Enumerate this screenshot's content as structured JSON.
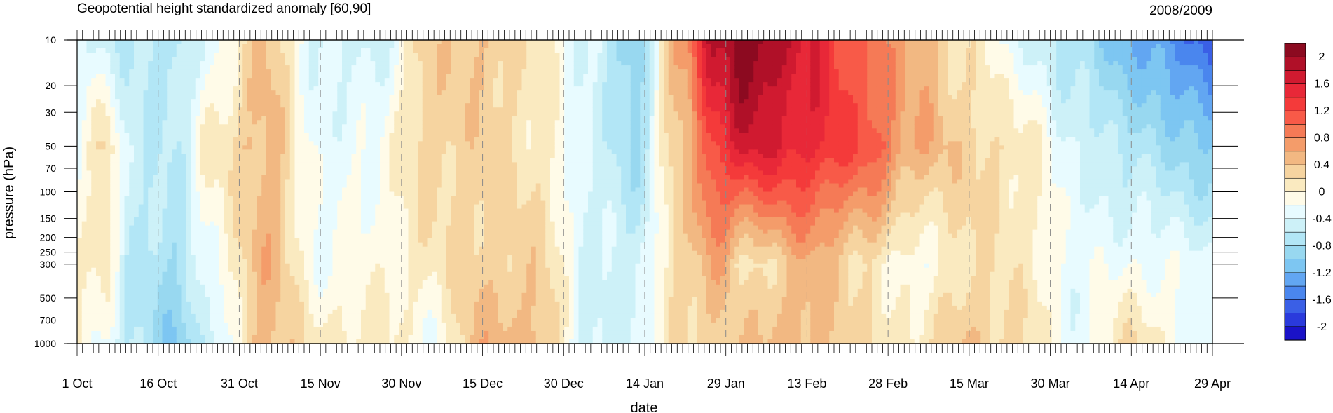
{
  "chart_data": {
    "type": "heatmap",
    "title": "Geopotential height standardized anomaly [60,90]",
    "title_right": "2008/2009",
    "xlabel": "date",
    "ylabel": "pressure (hPa)",
    "x_ticks": [
      {
        "day": 0,
        "label": "1 Oct"
      },
      {
        "day": 15,
        "label": "16 Oct"
      },
      {
        "day": 30,
        "label": "31 Oct"
      },
      {
        "day": 45,
        "label": "15 Nov"
      },
      {
        "day": 60,
        "label": "30 Nov"
      },
      {
        "day": 75,
        "label": "15 Dec"
      },
      {
        "day": 90,
        "label": "30 Dec"
      },
      {
        "day": 105,
        "label": "14 Jan"
      },
      {
        "day": 120,
        "label": "29 Jan"
      },
      {
        "day": 135,
        "label": "13 Feb"
      },
      {
        "day": 150,
        "label": "28 Feb"
      },
      {
        "day": 165,
        "label": "15 Mar"
      },
      {
        "day": 180,
        "label": "30 Mar"
      },
      {
        "day": 195,
        "label": "14 Apr"
      },
      {
        "day": 210,
        "label": "29 Apr"
      }
    ],
    "x_range_days": [
      0,
      210
    ],
    "y_ticks": [
      10,
      20,
      30,
      50,
      70,
      100,
      150,
      200,
      250,
      300,
      500,
      700,
      1000
    ],
    "y_range": [
      10,
      1000
    ],
    "y_scale": "log",
    "y_inverted": true,
    "colorbar_levels": [
      -2.2,
      -2.0,
      -1.8,
      -1.6,
      -1.4,
      -1.2,
      -1.0,
      -0.8,
      -0.6,
      -0.4,
      -0.2,
      0,
      0.2,
      0.4,
      0.6,
      0.8,
      1.0,
      1.2,
      1.4,
      1.6,
      1.8,
      2.0,
      2.2
    ],
    "colorbar_labels": [
      "2",
      "1.6",
      "1.2",
      "0.8",
      "0.4",
      "0",
      "-0.4",
      "-0.8",
      "-1.2",
      "-1.6",
      "-2"
    ],
    "colorbar_label_values": [
      2,
      1.6,
      1.2,
      0.8,
      0.4,
      0,
      -0.4,
      -0.8,
      -1.2,
      -1.6,
      -2
    ],
    "colors": [
      "#1a12c8",
      "#2a3adc",
      "#3a5fe6",
      "#4a86ee",
      "#62a6f2",
      "#7dc6f2",
      "#98d8f0",
      "#b2e6f6",
      "#cdf1f8",
      "#e8fbff",
      "#fffbe8",
      "#faeac0",
      "#f6d4a0",
      "#f2b882",
      "#f49c6a",
      "#f57a56",
      "#f85a48",
      "#f43a3a",
      "#e82838",
      "#d01a30",
      "#b01028",
      "#8c0a20"
    ],
    "grid": "dashed verticals at labeled dates",
    "legend": "colorbar right",
    "anomaly_field": [
      {
        "day": 0,
        "p10": -0.3,
        "p50": -0.2,
        "p300": -0.1,
        "p1000": 0.1
      },
      {
        "day": 5,
        "p10": -0.5,
        "p50": 0.2,
        "p300": 0.1,
        "p1000": -0.3
      },
      {
        "day": 10,
        "p10": -0.6,
        "p50": -0.5,
        "p300": -0.6,
        "p1000": -0.6
      },
      {
        "day": 18,
        "p10": -0.7,
        "p50": -0.6,
        "p300": -0.8,
        "p1000": -1.0
      },
      {
        "day": 25,
        "p10": -0.3,
        "p50": 0.1,
        "p300": -0.2,
        "p1000": -0.5
      },
      {
        "day": 35,
        "p10": 0.4,
        "p50": 0.5,
        "p300": 0.5,
        "p1000": 0.5
      },
      {
        "day": 45,
        "p10": -0.4,
        "p50": -0.3,
        "p300": -0.2,
        "p1000": 0.1
      },
      {
        "day": 55,
        "p10": -0.5,
        "p50": -0.2,
        "p300": -0.1,
        "p1000": 0.1
      },
      {
        "day": 65,
        "p10": 0.3,
        "p50": 0.3,
        "p300": 0.1,
        "p1000": -0.2
      },
      {
        "day": 75,
        "p10": 0.4,
        "p50": 0.3,
        "p300": 0.3,
        "p1000": 0.5
      },
      {
        "day": 85,
        "p10": 0.1,
        "p50": 0.1,
        "p300": 0.3,
        "p1000": 0.5
      },
      {
        "day": 95,
        "p10": -0.4,
        "p50": -0.4,
        "p300": -0.4,
        "p1000": -0.5
      },
      {
        "day": 103,
        "p10": -1.0,
        "p50": -0.8,
        "p300": -0.5,
        "p1000": -0.4
      },
      {
        "day": 112,
        "p10": 0.8,
        "p50": 0.4,
        "p300": 0.3,
        "p1000": 0.2
      },
      {
        "day": 118,
        "p10": 1.8,
        "p50": 1.3,
        "p300": 0.6,
        "p1000": 0.3
      },
      {
        "day": 124,
        "p10": 2.2,
        "p50": 1.7,
        "p300": 0.1,
        "p1000": 0.4
      },
      {
        "day": 135,
        "p10": 1.6,
        "p50": 1.5,
        "p300": 0.5,
        "p1000": 0.5
      },
      {
        "day": 145,
        "p10": 1.0,
        "p50": 1.2,
        "p300": 0.2,
        "p1000": 0.2
      },
      {
        "day": 155,
        "p10": 0.5,
        "p50": 0.6,
        "p300": -0.2,
        "p1000": 0.1
      },
      {
        "day": 165,
        "p10": 0.1,
        "p50": 0.3,
        "p300": 0.2,
        "p1000": 0.4
      },
      {
        "day": 175,
        "p10": -0.4,
        "p50": 0.1,
        "p300": 0.1,
        "p1000": 0.2
      },
      {
        "day": 185,
        "p10": -0.8,
        "p50": -0.4,
        "p300": -0.3,
        "p1000": -0.3
      },
      {
        "day": 195,
        "p10": -1.2,
        "p50": -0.7,
        "p300": -0.2,
        "p1000": 0.2
      },
      {
        "day": 210,
        "p10": -1.7,
        "p50": -1.0,
        "p300": -0.3,
        "p1000": -0.4
      }
    ]
  }
}
